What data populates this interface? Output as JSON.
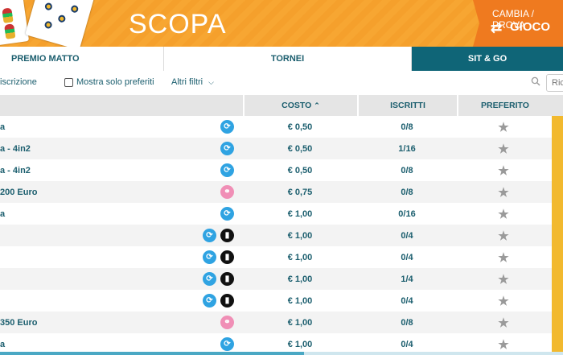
{
  "header": {
    "title": "SCOPA",
    "switch_line1": "CAMBIA / PROVA",
    "switch_line2": "GIOCO",
    "switch_icon": "swap-arrows-icon",
    "accent": "#f5a02c"
  },
  "tabs": [
    {
      "label": "PREMIO MATTO",
      "active": false
    },
    {
      "label": "TORNEI",
      "active": false
    },
    {
      "label": "SIT & GO",
      "active": true
    }
  ],
  "filters": {
    "subscription_label": "iscrizione",
    "only_favorites_label": "Mostra solo preferiti",
    "more_filters_label": "Altri filtri",
    "search_placeholder": "Ric"
  },
  "table": {
    "columns": {
      "cost": "COSTO",
      "registered": "ISCRITTI",
      "favorite": "PREFERITO"
    },
    "rows": [
      {
        "name": "a",
        "icons": [
          "blue"
        ],
        "cost": "€ 0,50",
        "registered": "0/8"
      },
      {
        "name": "a - 4in2",
        "icons": [
          "blue"
        ],
        "cost": "€ 0,50",
        "registered": "1/16"
      },
      {
        "name": "a - 4in2",
        "icons": [
          "blue"
        ],
        "cost": "€ 0,50",
        "registered": "0/8"
      },
      {
        "name": "200 Euro",
        "icons": [
          "pink"
        ],
        "cost": "€ 0,75",
        "registered": "0/8"
      },
      {
        "name": "a",
        "icons": [
          "blue"
        ],
        "cost": "€ 1,00",
        "registered": "0/16"
      },
      {
        "name": "",
        "icons": [
          "blue",
          "black"
        ],
        "cost": "€ 1,00",
        "registered": "0/4"
      },
      {
        "name": "",
        "icons": [
          "blue",
          "black"
        ],
        "cost": "€ 1,00",
        "registered": "0/4"
      },
      {
        "name": "",
        "icons": [
          "blue",
          "black"
        ],
        "cost": "€ 1,00",
        "registered": "1/4"
      },
      {
        "name": "",
        "icons": [
          "blue",
          "black"
        ],
        "cost": "€ 1,00",
        "registered": "0/4"
      },
      {
        "name": "350 Euro",
        "icons": [
          "pink"
        ],
        "cost": "€ 1,00",
        "registered": "0/8"
      },
      {
        "name": "a",
        "icons": [
          "blue"
        ],
        "cost": "€ 1,00",
        "registered": "0/4"
      }
    ]
  }
}
